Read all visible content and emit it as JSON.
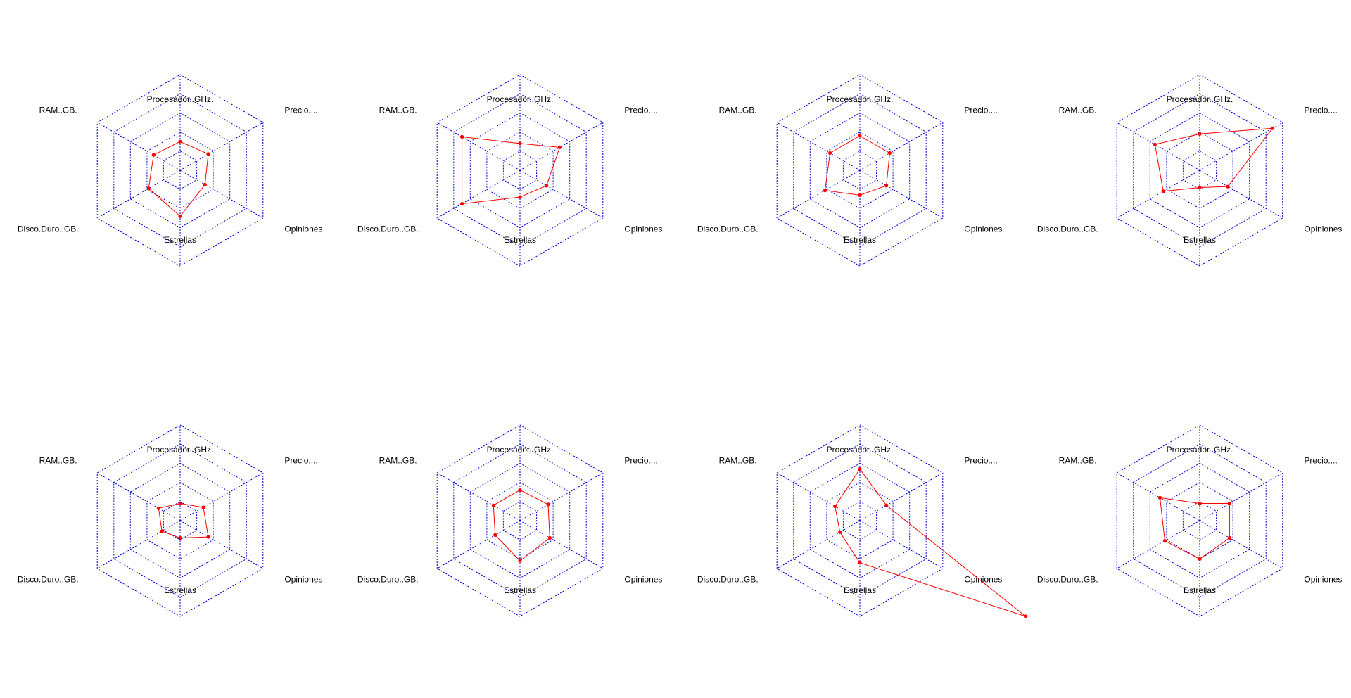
{
  "style": {
    "grid_color": "#0000cc",
    "series_color": "#ff0000",
    "background": "#ffffff"
  },
  "axes": [
    "Procesador..GHz.",
    "Precio....",
    "Opiniones",
    "Estrellas",
    "Disco.Duro..GB.",
    "RAM..GB."
  ],
  "chart_data": [
    {
      "type": "radar",
      "rings": 4,
      "rlim": [
        0,
        5
      ],
      "grid": true,
      "categories": [
        "Procesador..GHz.",
        "Precio....",
        "Opiniones",
        "Estrellas",
        "Disco.Duro..GB.",
        "RAM..GB."
      ],
      "series": [
        {
          "values": [
            1.5,
            1.7,
            1.5,
            2.4,
            1.9,
            1.6
          ]
        }
      ]
    },
    {
      "type": "radar",
      "rings": 4,
      "rlim": [
        0,
        5
      ],
      "grid": true,
      "categories": [
        "Procesador..GHz.",
        "Precio....",
        "Opiniones",
        "Estrellas",
        "Disco.Duro..GB.",
        "RAM..GB."
      ],
      "series": [
        {
          "values": [
            1.4,
            2.4,
            1.6,
            1.4,
            3.5,
            3.5
          ]
        }
      ]
    },
    {
      "type": "radar",
      "rings": 4,
      "rlim": [
        0,
        5
      ],
      "grid": true,
      "categories": [
        "Procesador..GHz.",
        "Precio....",
        "Opiniones",
        "Estrellas",
        "Disco.Duro..GB.",
        "RAM..GB."
      ],
      "series": [
        {
          "values": [
            1.8,
            1.8,
            1.6,
            1.3,
            2.1,
            1.8
          ]
        }
      ]
    },
    {
      "type": "radar",
      "rings": 4,
      "rlim": [
        0,
        5
      ],
      "grid": true,
      "categories": [
        "Procesador..GHz.",
        "Precio....",
        "Opiniones",
        "Estrellas",
        "Disco.Duro..GB.",
        "RAM..GB."
      ],
      "series": [
        {
          "values": [
            1.9,
            4.4,
            1.7,
            0.9,
            2.2,
            2.7
          ]
        }
      ]
    },
    {
      "type": "radar",
      "rings": 4,
      "rlim": [
        0,
        5
      ],
      "grid": true,
      "categories": [
        "Procesador..GHz.",
        "Precio....",
        "Opiniones",
        "Estrellas",
        "Disco.Duro..GB.",
        "RAM..GB."
      ],
      "series": [
        {
          "values": [
            0.9,
            1.4,
            1.7,
            0.9,
            1.1,
            1.3
          ]
        }
      ]
    },
    {
      "type": "radar",
      "rings": 4,
      "rlim": [
        0,
        5
      ],
      "grid": true,
      "categories": [
        "Procesador..GHz.",
        "Precio....",
        "Opiniones",
        "Estrellas",
        "Disco.Duro..GB.",
        "RAM..GB."
      ],
      "series": [
        {
          "values": [
            1.6,
            1.7,
            1.8,
            2.1,
            1.5,
            1.6
          ]
        }
      ]
    },
    {
      "type": "radar",
      "rings": 4,
      "rlim": [
        0,
        5
      ],
      "grid": true,
      "categories": [
        "Procesador..GHz.",
        "Precio....",
        "Opiniones",
        "Estrellas",
        "Disco.Duro..GB.",
        "RAM..GB."
      ],
      "series": [
        {
          "values": [
            2.7,
            1.6,
            10.0,
            2.2,
            1.2,
            1.5
          ]
        }
      ]
    },
    {
      "type": "radar",
      "rings": 4,
      "rlim": [
        0,
        5
      ],
      "grid": true,
      "categories": [
        "Procesador..GHz.",
        "Precio....",
        "Opiniones",
        "Estrellas",
        "Disco.Duro..GB.",
        "RAM..GB."
      ],
      "series": [
        {
          "values": [
            0.9,
            1.8,
            1.8,
            2.0,
            2.1,
            2.4
          ]
        }
      ]
    }
  ]
}
